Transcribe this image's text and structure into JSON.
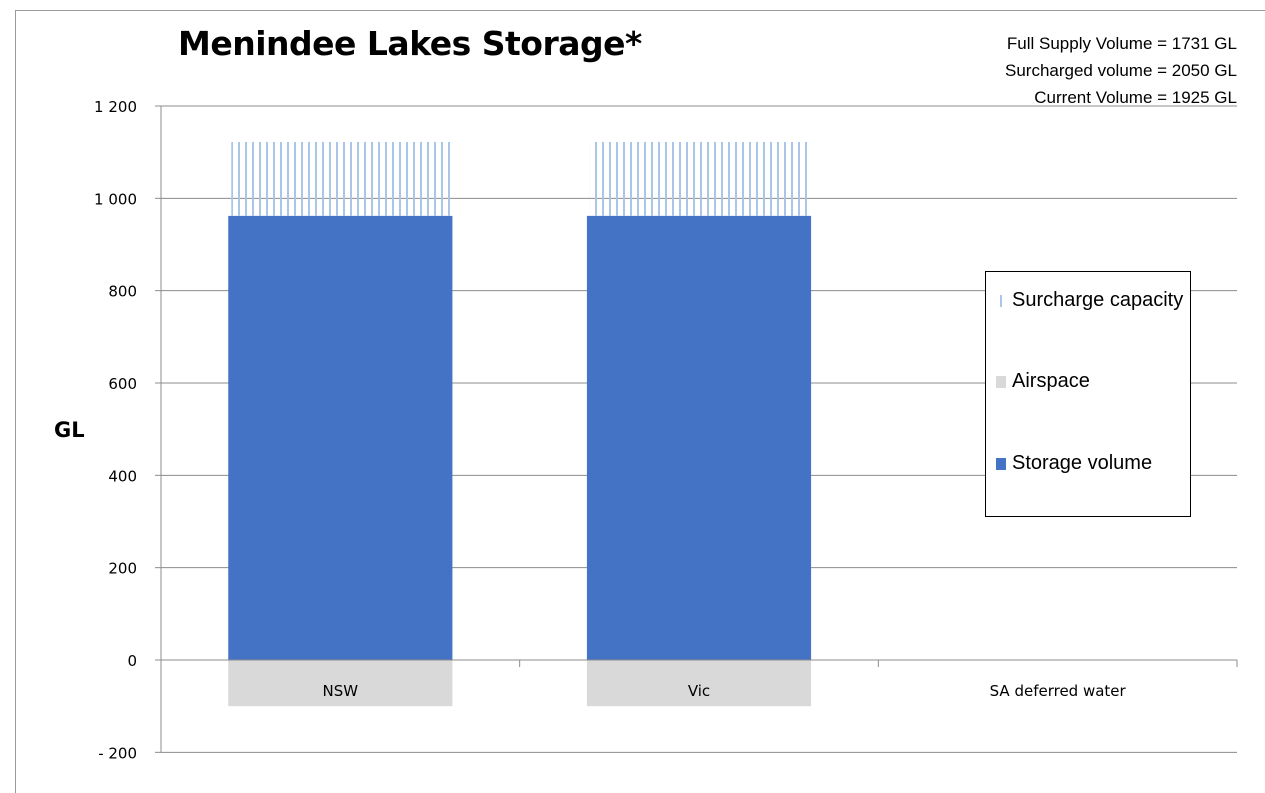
{
  "title": "Menindee Lakes Storage*",
  "notes": [
    "Full Supply Volume = 1731 GL",
    "Surcharged volume = 2050 GL",
    "Current Volume = 1925 GL"
  ],
  "legend": [
    {
      "label": "Surcharge capacity",
      "color": "#a9c6e8"
    },
    {
      "label": "Airspace",
      "color": "#d9d9d9"
    },
    {
      "label": "Storage volume",
      "color": "#4472c4"
    }
  ],
  "chart_data": {
    "type": "bar",
    "stacked": true,
    "title": "Menindee Lakes Storage*",
    "ylabel": "GL",
    "xlabel": "",
    "ylim": [
      -200,
      1200
    ],
    "yticks": [
      -200,
      0,
      200,
      400,
      600,
      800,
      1000,
      1200
    ],
    "ytick_labels": [
      "- 200",
      "0",
      "200",
      "400",
      "600",
      "800",
      "1 000",
      "1 200"
    ],
    "categories": [
      "NSW",
      "Vic",
      "SA deferred water"
    ],
    "series": [
      {
        "name": "Storage volume",
        "color": "#4472c4",
        "values": [
          962,
          962,
          0
        ]
      },
      {
        "name": "Airspace",
        "color": "#d9d9d9",
        "values": [
          -100,
          -100,
          0
        ]
      },
      {
        "name": "Surcharge capacity",
        "color": "#a9c6e8",
        "values": [
          160,
          160,
          0
        ]
      }
    ],
    "grid": true,
    "legend_position": "right"
  }
}
